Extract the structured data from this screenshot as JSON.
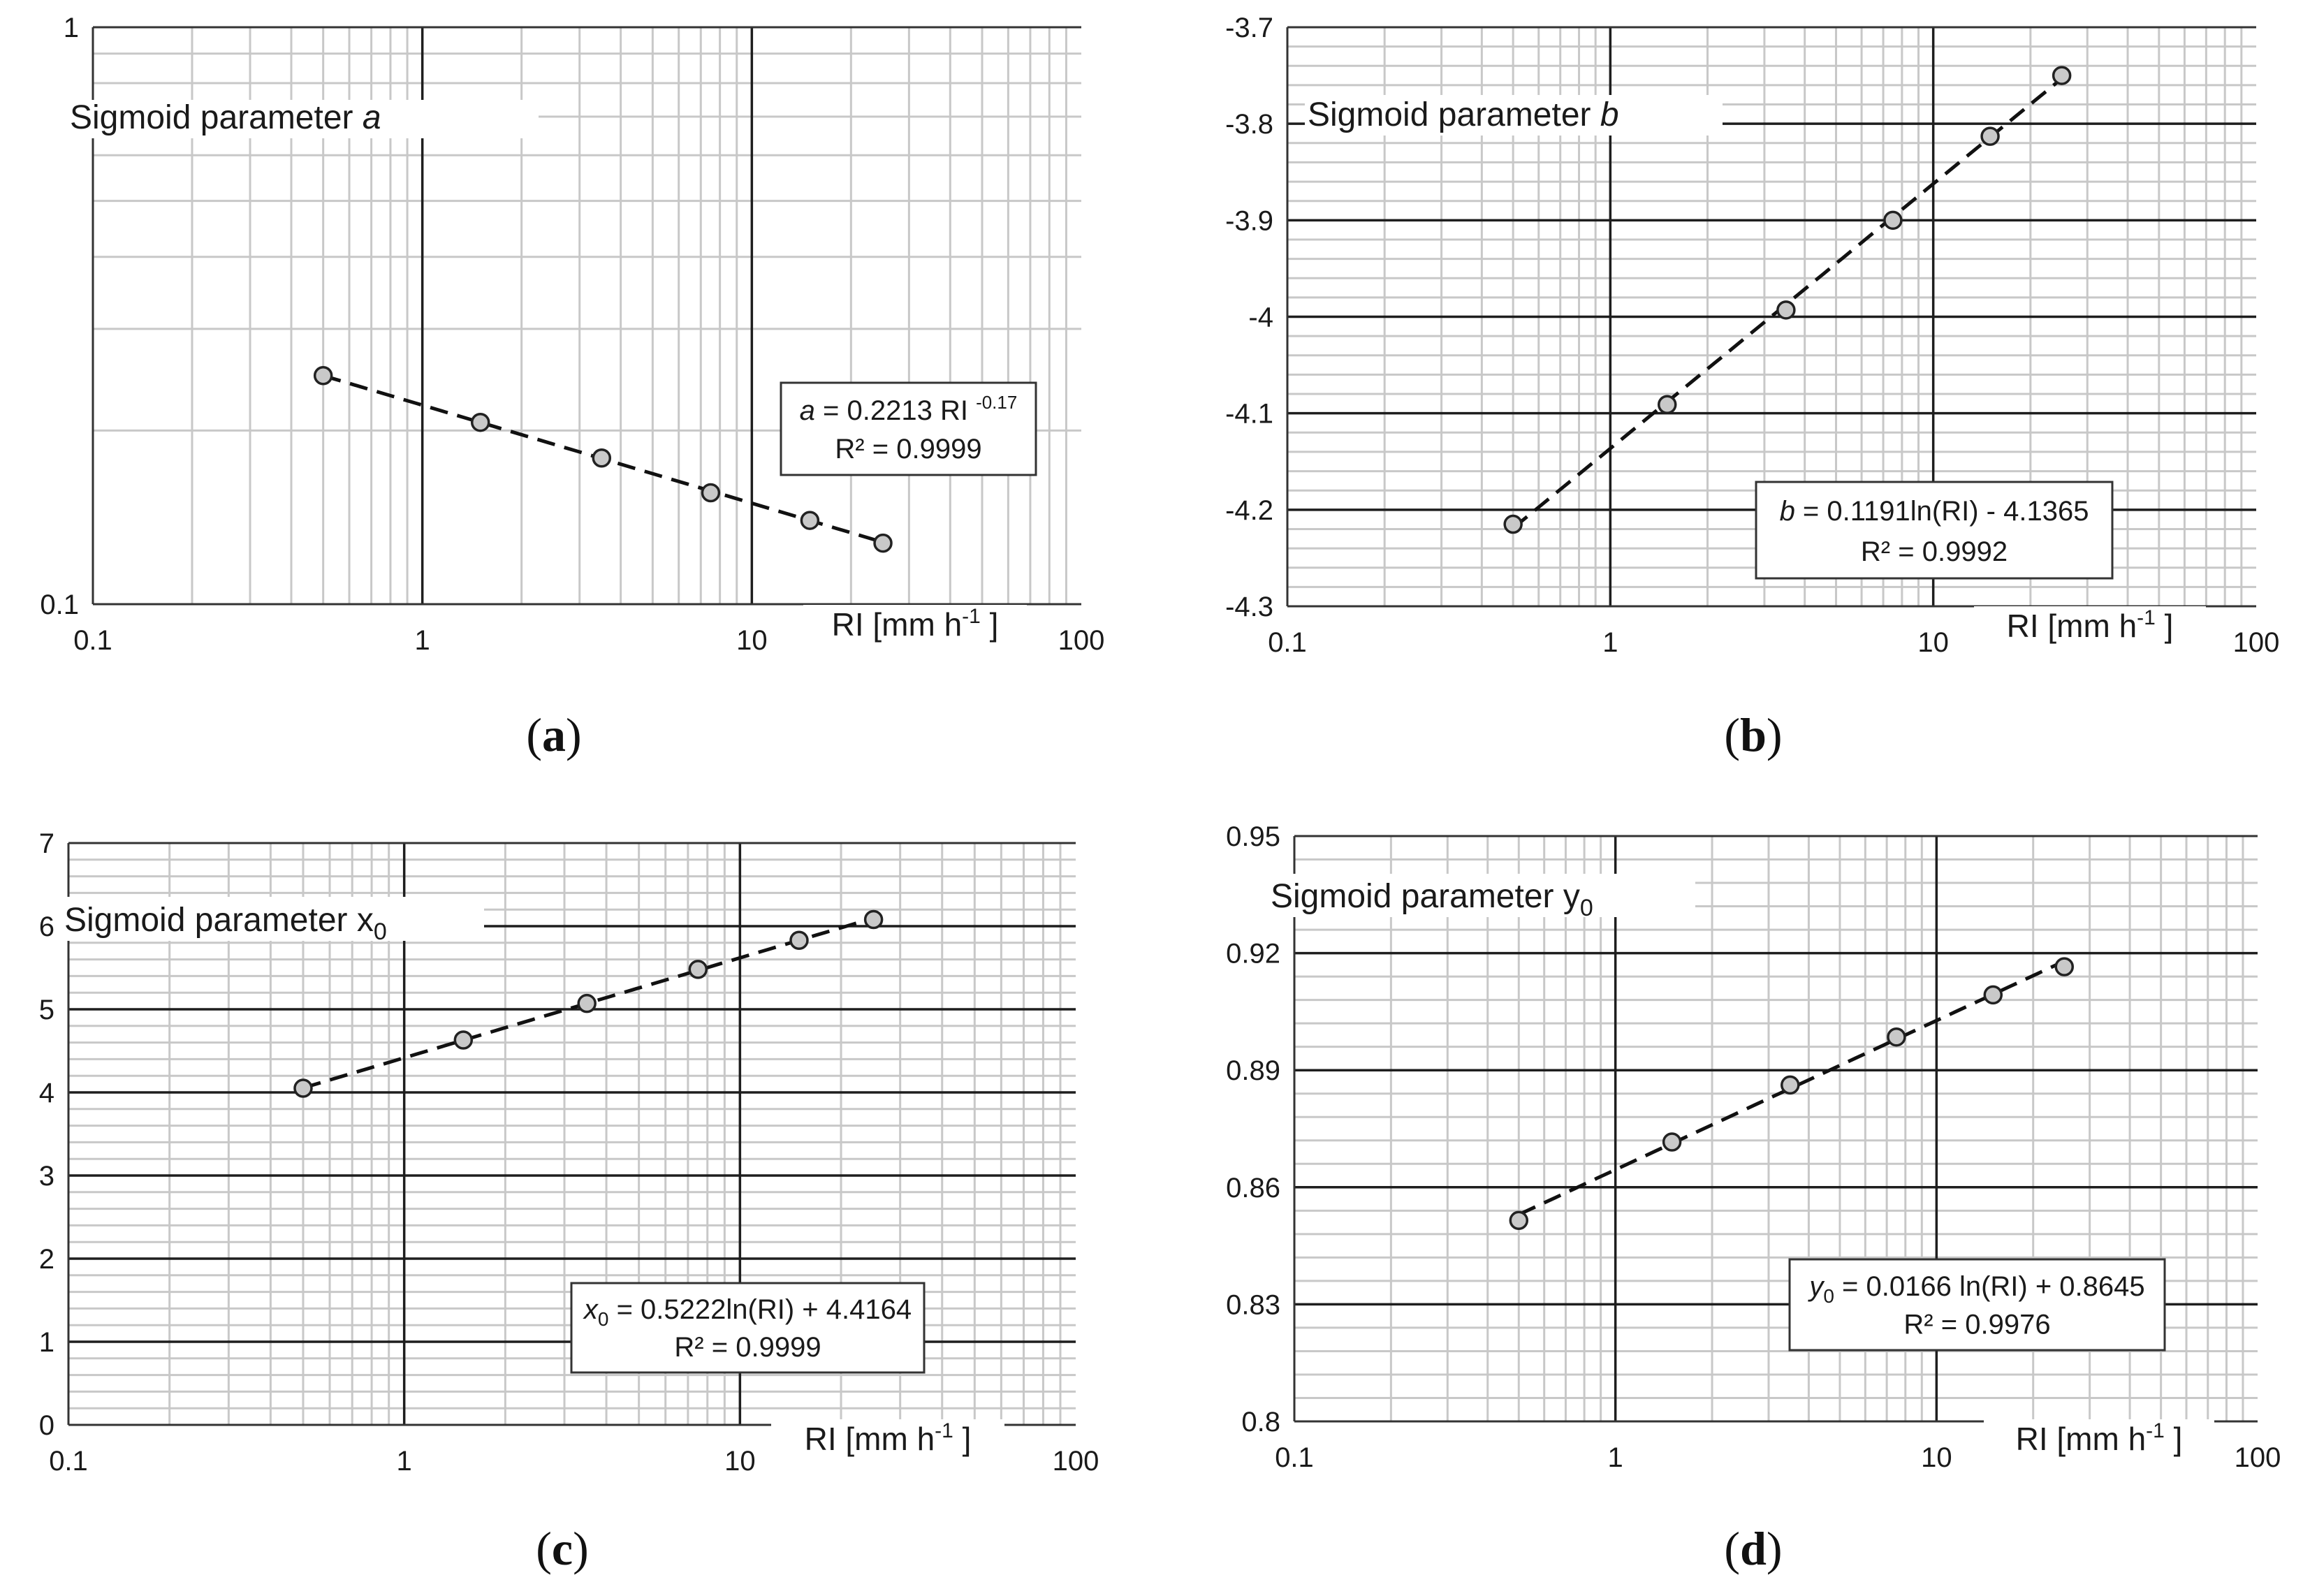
{
  "colors": {
    "minor_grid": "#c8c8c8",
    "major_grid": "#1e1e1e",
    "axis": "#333333",
    "marker_fill": "#c9c9c9",
    "marker_edge": "#222222",
    "trend": "#111111"
  },
  "chart_data": [
    {
      "id": "a",
      "type": "scatter",
      "panel_label": "a",
      "title": {
        "prefix": "Sigmoid parameter ",
        "symbol": "a",
        "symbol_italic": true
      },
      "xlabel": {
        "prefix": "RI [mm h",
        "sup": "-1",
        "suffix": " ]"
      },
      "x_scale": "log",
      "y_scale": "log",
      "xlim": [
        0.1,
        100
      ],
      "ylim": [
        0.1,
        1
      ],
      "x_ticks": [
        0.1,
        1,
        10,
        100
      ],
      "x_tick_labels": [
        "0.1",
        "1",
        "10",
        "100"
      ],
      "y_ticks": [
        0.1,
        1
      ],
      "y_tick_labels": [
        "0.1",
        "1"
      ],
      "points": {
        "x": [
          0.5,
          1.5,
          3.5,
          7.5,
          15,
          25
        ],
        "y": [
          0.249,
          0.2066,
          0.1792,
          0.156,
          0.1397,
          0.1276
        ]
      },
      "trendline": {
        "model": "power",
        "coef": 0.2213,
        "exp": -0.17,
        "x_range": [
          0.5,
          25
        ]
      },
      "equation": {
        "line1": [
          {
            "text": "a",
            "italic": true
          },
          {
            "text": " = 0.2213 RI "
          },
          {
            "text": "-0.17",
            "sup": true
          }
        ],
        "line2": "R² = 0.9999"
      }
    },
    {
      "id": "b",
      "type": "scatter",
      "panel_label": "b",
      "title": {
        "prefix": "Sigmoid parameter ",
        "symbol": "b",
        "symbol_italic": true
      },
      "xlabel": {
        "prefix": "RI [mm h",
        "sup": "-1",
        "suffix": " ]"
      },
      "x_scale": "log",
      "y_scale": "linear",
      "xlim": [
        0.1,
        100
      ],
      "ylim": [
        -4.3,
        -3.7
      ],
      "x_ticks": [
        0.1,
        1,
        10,
        100
      ],
      "x_tick_labels": [
        "0.1",
        "1",
        "10",
        "100"
      ],
      "y_ticks": [
        -4.3,
        -4.2,
        -4.1,
        -4.0,
        -3.9,
        -3.8,
        -3.7
      ],
      "y_tick_labels": [
        "-4.3",
        "-4.2",
        "-4.1",
        "-4",
        "-3.9",
        "-3.8",
        "-3.7"
      ],
      "y_minor_step": 0.02,
      "points": {
        "x": [
          0.5,
          1.5,
          3.5,
          7.5,
          15,
          25
        ],
        "y": [
          -4.215,
          -4.091,
          -3.993,
          -3.9,
          -3.813,
          -3.75
        ]
      },
      "trendline": {
        "model": "ln",
        "slope": 0.1191,
        "intercept": -4.1365,
        "x_range": [
          0.5,
          25
        ]
      },
      "equation": {
        "line1": [
          {
            "text": "b",
            "italic": true
          },
          {
            "text": " = 0.1191ln(RI) - 4.1365"
          }
        ],
        "line2": "R² = 0.9992"
      }
    },
    {
      "id": "c",
      "type": "scatter",
      "panel_label": "c",
      "title": {
        "prefix": "Sigmoid parameter x",
        "sub": "0"
      },
      "xlabel": {
        "prefix": "RI [mm h",
        "sup": "-1",
        "suffix": " ]"
      },
      "x_scale": "log",
      "y_scale": "linear",
      "xlim": [
        0.1,
        100
      ],
      "ylim": [
        0,
        7
      ],
      "x_ticks": [
        0.1,
        1,
        10,
        100
      ],
      "x_tick_labels": [
        "0.1",
        "1",
        "10",
        "100"
      ],
      "y_ticks": [
        0,
        1,
        2,
        3,
        4,
        5,
        6,
        7
      ],
      "y_tick_labels": [
        "0",
        "1",
        "2",
        "3",
        "4",
        "5",
        "6",
        "7"
      ],
      "y_minor_step": 0.2,
      "points": {
        "x": [
          0.5,
          1.5,
          3.5,
          7.5,
          15,
          25
        ],
        "y": [
          4.05,
          4.63,
          5.07,
          5.48,
          5.83,
          6.08
        ]
      },
      "trendline": {
        "model": "ln",
        "slope": 0.5222,
        "intercept": 4.4164,
        "x_range": [
          0.5,
          25
        ]
      },
      "equation": {
        "line1": [
          {
            "text": "x",
            "italic": true
          },
          {
            "text": "0",
            "sub": true
          },
          {
            "text": " = 0.5222ln(RI) + 4.4164"
          }
        ],
        "line2": "R² = 0.9999"
      }
    },
    {
      "id": "d",
      "type": "scatter",
      "panel_label": "d",
      "title": {
        "prefix": "Sigmoid parameter y",
        "sub": "0"
      },
      "xlabel": {
        "prefix": "RI [mm h",
        "sup": "-1",
        "suffix": " ]"
      },
      "x_scale": "log",
      "y_scale": "linear",
      "xlim": [
        0.1,
        100
      ],
      "ylim": [
        0.8,
        0.95
      ],
      "x_ticks": [
        0.1,
        1,
        10,
        100
      ],
      "x_tick_labels": [
        "0.1",
        "1",
        "10",
        "100"
      ],
      "y_ticks": [
        0.8,
        0.83,
        0.86,
        0.89,
        0.92,
        0.95
      ],
      "y_tick_labels": [
        "0.8",
        "0.83",
        "0.86",
        "0.89",
        "0.92",
        "0.95"
      ],
      "y_minor_step": 0.006,
      "points": {
        "x": [
          0.5,
          1.5,
          3.5,
          7.5,
          15,
          25
        ],
        "y": [
          0.8515,
          0.8716,
          0.8862,
          0.8985,
          0.9093,
          0.9165
        ]
      },
      "trendline": {
        "model": "ln",
        "slope": 0.0166,
        "intercept": 0.8645,
        "x_range": [
          0.5,
          25
        ]
      },
      "equation": {
        "line1": [
          {
            "text": "y",
            "italic": true
          },
          {
            "text": "0",
            "sub": true
          },
          {
            "text": " = 0.0166 ln(RI) + 0.8645"
          }
        ],
        "line2": "R² = 0.9976"
      }
    }
  ]
}
